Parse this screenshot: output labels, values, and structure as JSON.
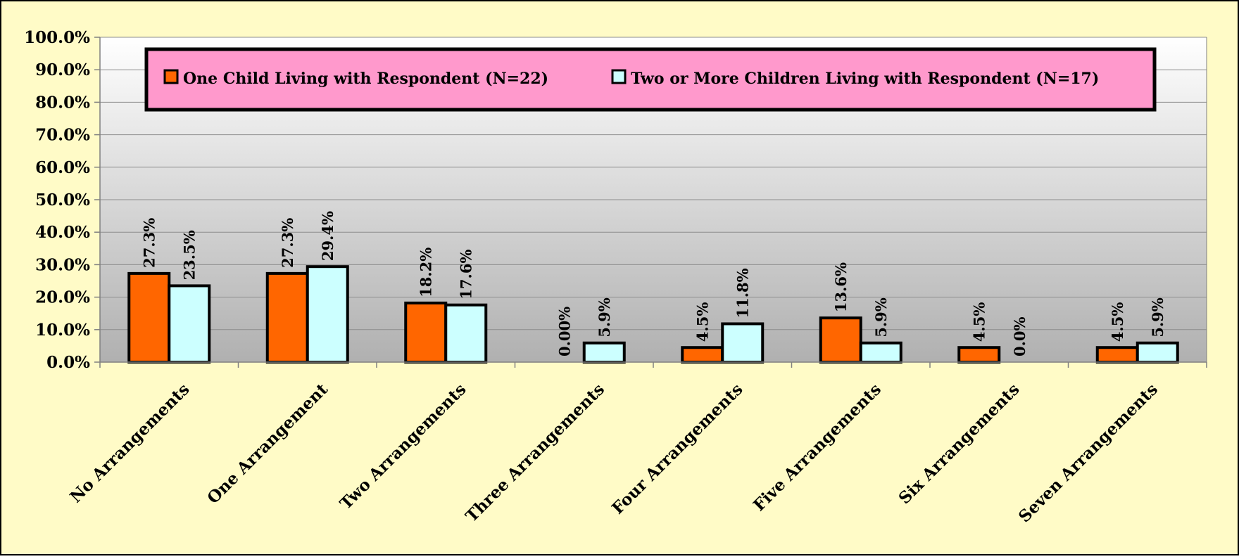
{
  "colors": {
    "page_background": "#fffbc7",
    "plot_gradient_top": "#ffffff",
    "plot_gradient_bottom": "#b0b0b0",
    "legend_background": "#ff99cc",
    "series_1": "#ff6600",
    "series_2": "#ccffff",
    "gridline": "#8c8c8c",
    "axis": "#808080"
  },
  "chart_data": {
    "type": "bar",
    "title": "",
    "xlabel": "",
    "ylabel": "",
    "ylim": [
      0,
      100
    ],
    "y_ticks": [
      "0.0%",
      "10.0%",
      "20.0%",
      "30.0%",
      "40.0%",
      "50.0%",
      "60.0%",
      "70.0%",
      "80.0%",
      "90.0%",
      "100.0%"
    ],
    "grid": true,
    "legend_position": "top-center",
    "categories": [
      "No Arrangements",
      "One Arrangement",
      "Two Arrangements",
      "Three Arrangements",
      "Four Arrangements",
      "Five Arrangements",
      "Six Arrangements",
      "Seven Arrangements"
    ],
    "series": [
      {
        "name": "One Child Living with Respondent (N=22)",
        "color": "#ff6600",
        "values": [
          27.3,
          27.3,
          18.2,
          0.0,
          4.5,
          13.6,
          4.5,
          4.5
        ],
        "labels": [
          "27.3%",
          "27.3%",
          "18.2%",
          "0.00%",
          "4.5%",
          "13.6%",
          "4.5%",
          "4.5%"
        ]
      },
      {
        "name": "Two or More Children Living with Respondent (N=17)",
        "color": "#ccffff",
        "values": [
          23.5,
          29.4,
          17.6,
          5.9,
          11.8,
          5.9,
          0.0,
          5.9
        ],
        "labels": [
          "23.5%",
          "29.4%",
          "17.6%",
          "5.9%",
          "11.8%",
          "5.9%",
          "0.0%",
          "5.9%"
        ]
      }
    ]
  }
}
